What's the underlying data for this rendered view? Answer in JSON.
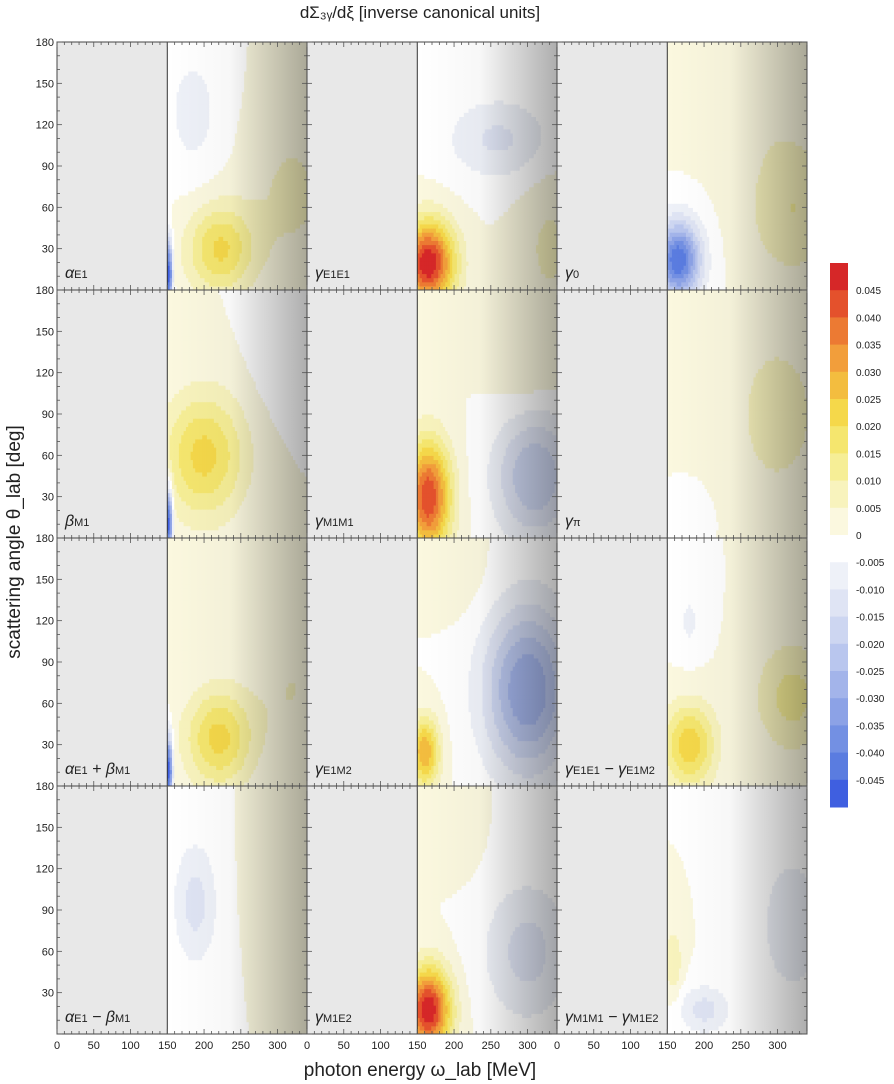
{
  "figure": {
    "title": "dΣ₃ᵧ/dξ [inverse canonical units]",
    "xlabel": "photon energy ω_lab [MeV]",
    "ylabel": "scattering angle θ_lab [deg]"
  },
  "chart_data": {
    "type": "heatmap",
    "layout": "4 rows x 3 columns of contour panels",
    "x_range": [
      0,
      340
    ],
    "y_range": [
      0,
      180
    ],
    "x_ticks": [
      0,
      50,
      100,
      150,
      200,
      250,
      300
    ],
    "y_ticks": [
      30,
      60,
      90,
      120,
      150,
      180
    ],
    "threshold_x": 150,
    "colorbar": {
      "ticks": [
        "0.045",
        "0.040",
        "0.035",
        "0.030",
        "0.025",
        "0.020",
        "0.015",
        "0.010",
        "0.005",
        "0",
        "-0.005",
        "-0.010",
        "-0.015",
        "-0.020",
        "-0.025",
        "-0.030",
        "-0.035",
        "-0.040",
        "-0.045"
      ],
      "range": [
        -0.05,
        0.05
      ],
      "colors": [
        "#d62728",
        "#e4512c",
        "#ec7a33",
        "#f29e3b",
        "#f3bd3f",
        "#f5d84a",
        "#f5e66e",
        "#f6ee96",
        "#f8f3bd",
        "#fbf8df",
        "#ffffff",
        "#eef1f8",
        "#dfe4f4",
        "#cdd6f1",
        "#b9c6ee",
        "#a3b4ea",
        "#8ca2e6",
        "#7390e3",
        "#5a7ce0",
        "#3f5fe0"
      ]
    },
    "panels": [
      {
        "label_main": "α",
        "label_sub": "E1",
        "features": [
          {
            "x": 222,
            "y": 30,
            "v": 0.021,
            "sx": 45,
            "sy": 32
          },
          {
            "x": 152,
            "y": 12,
            "v": -0.05,
            "sx": 5,
            "sy": 25
          },
          {
            "x": 185,
            "y": 130,
            "v": -0.007,
            "sx": 40,
            "sy": 50
          },
          {
            "x": 320,
            "y": 70,
            "v": 0.006,
            "sx": 60,
            "sy": 60
          }
        ]
      },
      {
        "label_main": "γ",
        "label_sub": "E1E1",
        "features": [
          {
            "x": 165,
            "y": 20,
            "v": 0.05,
            "sx": 35,
            "sy": 30
          },
          {
            "x": 260,
            "y": 110,
            "v": -0.011,
            "sx": 70,
            "sy": 30
          },
          {
            "x": 330,
            "y": 30,
            "v": 0.006,
            "sx": 40,
            "sy": 50
          }
        ]
      },
      {
        "label_main": "γ",
        "label_sub": "0",
        "features": [
          {
            "x": 165,
            "y": 22,
            "v": -0.045,
            "sx": 30,
            "sy": 28
          },
          {
            "x": 320,
            "y": 60,
            "v": 0.01,
            "sx": 60,
            "sy": 50
          },
          {
            "x": 250,
            "y": 140,
            "v": 0.004,
            "sx": 80,
            "sy": 40
          }
        ]
      },
      {
        "label_main": "β",
        "label_sub": "M1",
        "features": [
          {
            "x": 200,
            "y": 60,
            "v": 0.022,
            "sx": 55,
            "sy": 45
          },
          {
            "x": 152,
            "y": 12,
            "v": -0.05,
            "sx": 5,
            "sy": 25
          },
          {
            "x": 320,
            "y": 130,
            "v": -0.004,
            "sx": 50,
            "sy": 40
          }
        ]
      },
      {
        "label_main": "γ",
        "label_sub": "M1M1",
        "features": [
          {
            "x": 165,
            "y": 30,
            "v": 0.045,
            "sx": 30,
            "sy": 40
          },
          {
            "x": 310,
            "y": 45,
            "v": -0.02,
            "sx": 55,
            "sy": 45
          },
          {
            "x": 300,
            "y": 130,
            "v": 0.005,
            "sx": 50,
            "sy": 35
          }
        ]
      },
      {
        "label_main": "γ",
        "label_sub": "π",
        "features": [
          {
            "x": 300,
            "y": 90,
            "v": 0.007,
            "sx": 70,
            "sy": 70
          },
          {
            "x": 185,
            "y": 15,
            "v": -0.003,
            "sx": 25,
            "sy": 20
          }
        ]
      },
      {
        "label_main": "α",
        "label_sub": "E1",
        "label_main2": " + β",
        "label_sub2": "M1",
        "features": [
          {
            "x": 220,
            "y": 35,
            "v": 0.022,
            "sx": 45,
            "sy": 35
          },
          {
            "x": 152,
            "y": 12,
            "v": -0.05,
            "sx": 5,
            "sy": 25
          },
          {
            "x": 320,
            "y": 70,
            "v": 0.005,
            "sx": 55,
            "sy": 50
          }
        ]
      },
      {
        "label_main": "γ",
        "label_sub": "E1M2",
        "features": [
          {
            "x": 160,
            "y": 25,
            "v": 0.03,
            "sx": 20,
            "sy": 25
          },
          {
            "x": 300,
            "y": 70,
            "v": -0.03,
            "sx": 60,
            "sy": 60
          },
          {
            "x": 210,
            "y": 150,
            "v": 0.003,
            "sx": 40,
            "sy": 30
          }
        ]
      },
      {
        "label_main": "γ",
        "label_sub": "E1E1",
        "label_main2": " − γ",
        "label_sub2": "E1M2",
        "features": [
          {
            "x": 180,
            "y": 30,
            "v": 0.024,
            "sx": 35,
            "sy": 30
          },
          {
            "x": 180,
            "y": 120,
            "v": -0.006,
            "sx": 20,
            "sy": 25
          },
          {
            "x": 320,
            "y": 65,
            "v": 0.012,
            "sx": 50,
            "sy": 40
          }
        ]
      },
      {
        "label_main": "α",
        "label_sub": "E1",
        "label_main2": " − β",
        "label_sub2": "M1",
        "features": [
          {
            "x": 188,
            "y": 95,
            "v": -0.012,
            "sx": 30,
            "sy": 45
          },
          {
            "x": 320,
            "y": 110,
            "v": 0.003,
            "sx": 50,
            "sy": 40
          }
        ]
      },
      {
        "label_main": "γ",
        "label_sub": "M1E2",
        "features": [
          {
            "x": 165,
            "y": 18,
            "v": 0.05,
            "sx": 30,
            "sy": 30
          },
          {
            "x": 200,
            "y": 140,
            "v": 0.004,
            "sx": 30,
            "sy": 25
          },
          {
            "x": 300,
            "y": 60,
            "v": -0.012,
            "sx": 60,
            "sy": 50
          }
        ]
      },
      {
        "label_main": "γ",
        "label_sub": "M1M1",
        "label_main2": " − γ",
        "label_sub2": "M1E2",
        "features": [
          {
            "x": 200,
            "y": 18,
            "v": -0.012,
            "sx": 35,
            "sy": 18
          },
          {
            "x": 158,
            "y": 52,
            "v": 0.01,
            "sx": 12,
            "sy": 25
          },
          {
            "x": 320,
            "y": 80,
            "v": -0.008,
            "sx": 50,
            "sy": 60
          }
        ]
      }
    ]
  }
}
